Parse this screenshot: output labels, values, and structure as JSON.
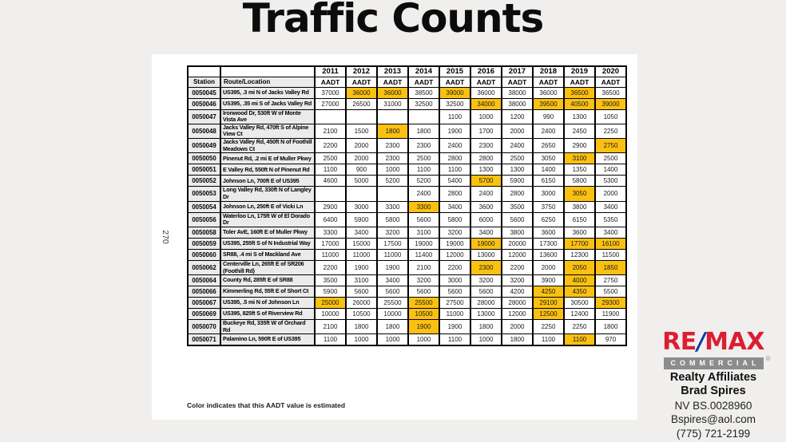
{
  "page": {
    "title": "Traffic Counts",
    "page_number": "270",
    "footnote": "Color indicates that this AADT value is estimated"
  },
  "table": {
    "station_header": "Station",
    "route_header": "Route/Location",
    "aadt_label": "AADT",
    "years": [
      "2011",
      "2012",
      "2013",
      "2014",
      "2015",
      "2016",
      "2017",
      "2018",
      "2019",
      "2020"
    ],
    "highlight_color": "#FBC112",
    "highlight_meaning": "estimated AADT value",
    "rows": [
      {
        "station": "0050045",
        "route": "US395, .3 mi N of Jacks Valley Rd",
        "values": [
          "37000",
          "36000",
          "36000",
          "38500",
          "39000",
          "36000",
          "38000",
          "36000",
          "36500",
          "36500"
        ],
        "estimated": [
          1,
          2,
          4,
          8
        ]
      },
      {
        "station": "0050046",
        "route": "US395, .35 mi S of Jacks Valley Rd",
        "values": [
          "27000",
          "26500",
          "31000",
          "32500",
          "32500",
          "34000",
          "38000",
          "39500",
          "40500",
          "39000"
        ],
        "estimated": [
          5,
          7,
          8,
          9
        ]
      },
      {
        "station": "0050047",
        "route": "Ironwood Dr, 530ft W of Monte Vista Ave",
        "values": [
          "",
          "",
          "",
          "",
          "1100",
          "1000",
          "1200",
          "990",
          "1300",
          "1050"
        ],
        "estimated": []
      },
      {
        "station": "0050048",
        "route": "Jacks Valley Rd, 470ft S of Alpine View Ct",
        "values": [
          "2100",
          "1500",
          "1800",
          "1800",
          "1900",
          "1700",
          "2000",
          "2400",
          "2450",
          "2250"
        ],
        "estimated": [
          2
        ]
      },
      {
        "station": "0050049",
        "route": "Jacks Valley Rd, 450ft N of Foothill Meadows Ct",
        "values": [
          "2200",
          "2000",
          "2300",
          "2300",
          "2400",
          "2300",
          "2400",
          "2650",
          "2900",
          "2750"
        ],
        "estimated": [
          9
        ]
      },
      {
        "station": "0050050",
        "route": "Pinenut Rd, .2 mi E of Muller Pkwy",
        "values": [
          "2500",
          "2000",
          "2300",
          "2500",
          "2800",
          "2800",
          "2500",
          "3050",
          "3100",
          "2500"
        ],
        "estimated": [
          8
        ]
      },
      {
        "station": "0050051",
        "route": "E Valley Rd, 550ft N of Pinenut Rd",
        "values": [
          "1100",
          "900",
          "1000",
          "1100",
          "1100",
          "1300",
          "1300",
          "1400",
          "1350",
          "1400"
        ],
        "estimated": []
      },
      {
        "station": "0050052",
        "route": "Johnson Ln, 700ft E of US395",
        "values": [
          "4600",
          "5000",
          "5200",
          "5200",
          "5400",
          "5700",
          "5900",
          "6150",
          "5800",
          "5300"
        ],
        "estimated": [
          5
        ]
      },
      {
        "station": "0050053",
        "route": "Long Valley Rd, 330ft N of Langley Dr",
        "values": [
          "",
          "",
          "",
          "2400",
          "2800",
          "2400",
          "2800",
          "3000",
          "3050",
          "2000"
        ],
        "estimated": [
          8
        ]
      },
      {
        "station": "0050054",
        "route": "Johnson Ln, 250ft E of Vicki Ln",
        "values": [
          "2900",
          "3000",
          "3300",
          "3300",
          "3400",
          "3600",
          "3500",
          "3750",
          "3800",
          "3400"
        ],
        "estimated": [
          3
        ]
      },
      {
        "station": "0050056",
        "route": "Waterloo Ln, 175ft W of El Dorado Dr",
        "values": [
          "6400",
          "5900",
          "5800",
          "5600",
          "5800",
          "6000",
          "5600",
          "6250",
          "6150",
          "5350"
        ],
        "estimated": []
      },
      {
        "station": "0050058",
        "route": "Toler AvE, 160ft E of Muller Pkwy",
        "values": [
          "3300",
          "3400",
          "3200",
          "3100",
          "3200",
          "3400",
          "3800",
          "3600",
          "3600",
          "3400"
        ],
        "estimated": []
      },
      {
        "station": "0050059",
        "route": "US395, 255ft S of N Industrial Way",
        "values": [
          "17000",
          "15000",
          "17500",
          "19000",
          "19000",
          "19000",
          "20000",
          "17300",
          "17700",
          "16100"
        ],
        "estimated": [
          5,
          8,
          9
        ]
      },
      {
        "station": "0050060",
        "route": "SR88, .4 mi S of Mackland Ave",
        "values": [
          "11000",
          "11000",
          "11000",
          "11400",
          "12000",
          "13000",
          "12000",
          "13600",
          "12300",
          "11500"
        ],
        "estimated": []
      },
      {
        "station": "0050062",
        "route": "Centerville Ln, 265ft E of SR206 (Foothill Rd)",
        "values": [
          "2200",
          "1900",
          "1900",
          "2100",
          "2200",
          "2300",
          "2200",
          "2000",
          "2050",
          "1850"
        ],
        "estimated": [
          5,
          8,
          9
        ]
      },
      {
        "station": "0050064",
        "route": "County Rd, 285ft E of SR88",
        "values": [
          "3500",
          "3100",
          "3400",
          "3200",
          "3000",
          "3200",
          "3200",
          "3900",
          "4000",
          "2750"
        ],
        "estimated": [
          8
        ]
      },
      {
        "station": "0050066",
        "route": "Kimmerling Rd, 55ft E of Short Ct",
        "values": [
          "5900",
          "5600",
          "5600",
          "5600",
          "5600",
          "5600",
          "4200",
          "4250",
          "4350",
          "5500"
        ],
        "estimated": [
          7,
          8
        ]
      },
      {
        "station": "0050067",
        "route": "US395, .5 mi N of Johnson Ln",
        "values": [
          "25000",
          "26000",
          "25500",
          "25500",
          "27500",
          "28000",
          "28000",
          "29100",
          "30500",
          "29300"
        ],
        "estimated": [
          0,
          3,
          7,
          9
        ]
      },
      {
        "station": "0050069",
        "route": "US395, 825ft S of Riverview Rd",
        "values": [
          "10000",
          "10500",
          "10000",
          "10500",
          "11000",
          "13000",
          "12000",
          "12500",
          "12400",
          "11900"
        ],
        "estimated": [
          3,
          7
        ]
      },
      {
        "station": "0050070",
        "route": "Buckeye Rd, 335ft W of Orchard Rd",
        "values": [
          "2100",
          "1800",
          "1800",
          "1900",
          "1900",
          "1800",
          "2000",
          "2250",
          "2250",
          "1800"
        ],
        "estimated": [
          3
        ]
      },
      {
        "station": "0050071",
        "route": "Palamino Ln, 590ft E of US395",
        "values": [
          "1100",
          "1000",
          "1000",
          "1000",
          "1100",
          "1000",
          "1800",
          "1100",
          "1100",
          "970"
        ],
        "estimated": [
          8
        ]
      }
    ]
  },
  "branding": {
    "remax_re": "RE",
    "remax_slash": "/",
    "remax_max": "MAX",
    "commercial_label": "COMMERCIAL",
    "registered_mark": "®",
    "lines": [
      "Realty Affiliates",
      "Brad Spires",
      "NV BS.0028960",
      "Bspires@aol.com",
      "(775) 721-2199"
    ],
    "colors": {
      "red": "#DC1E32",
      "blue": "#003DA5",
      "gray": "#8A8C8E"
    }
  }
}
